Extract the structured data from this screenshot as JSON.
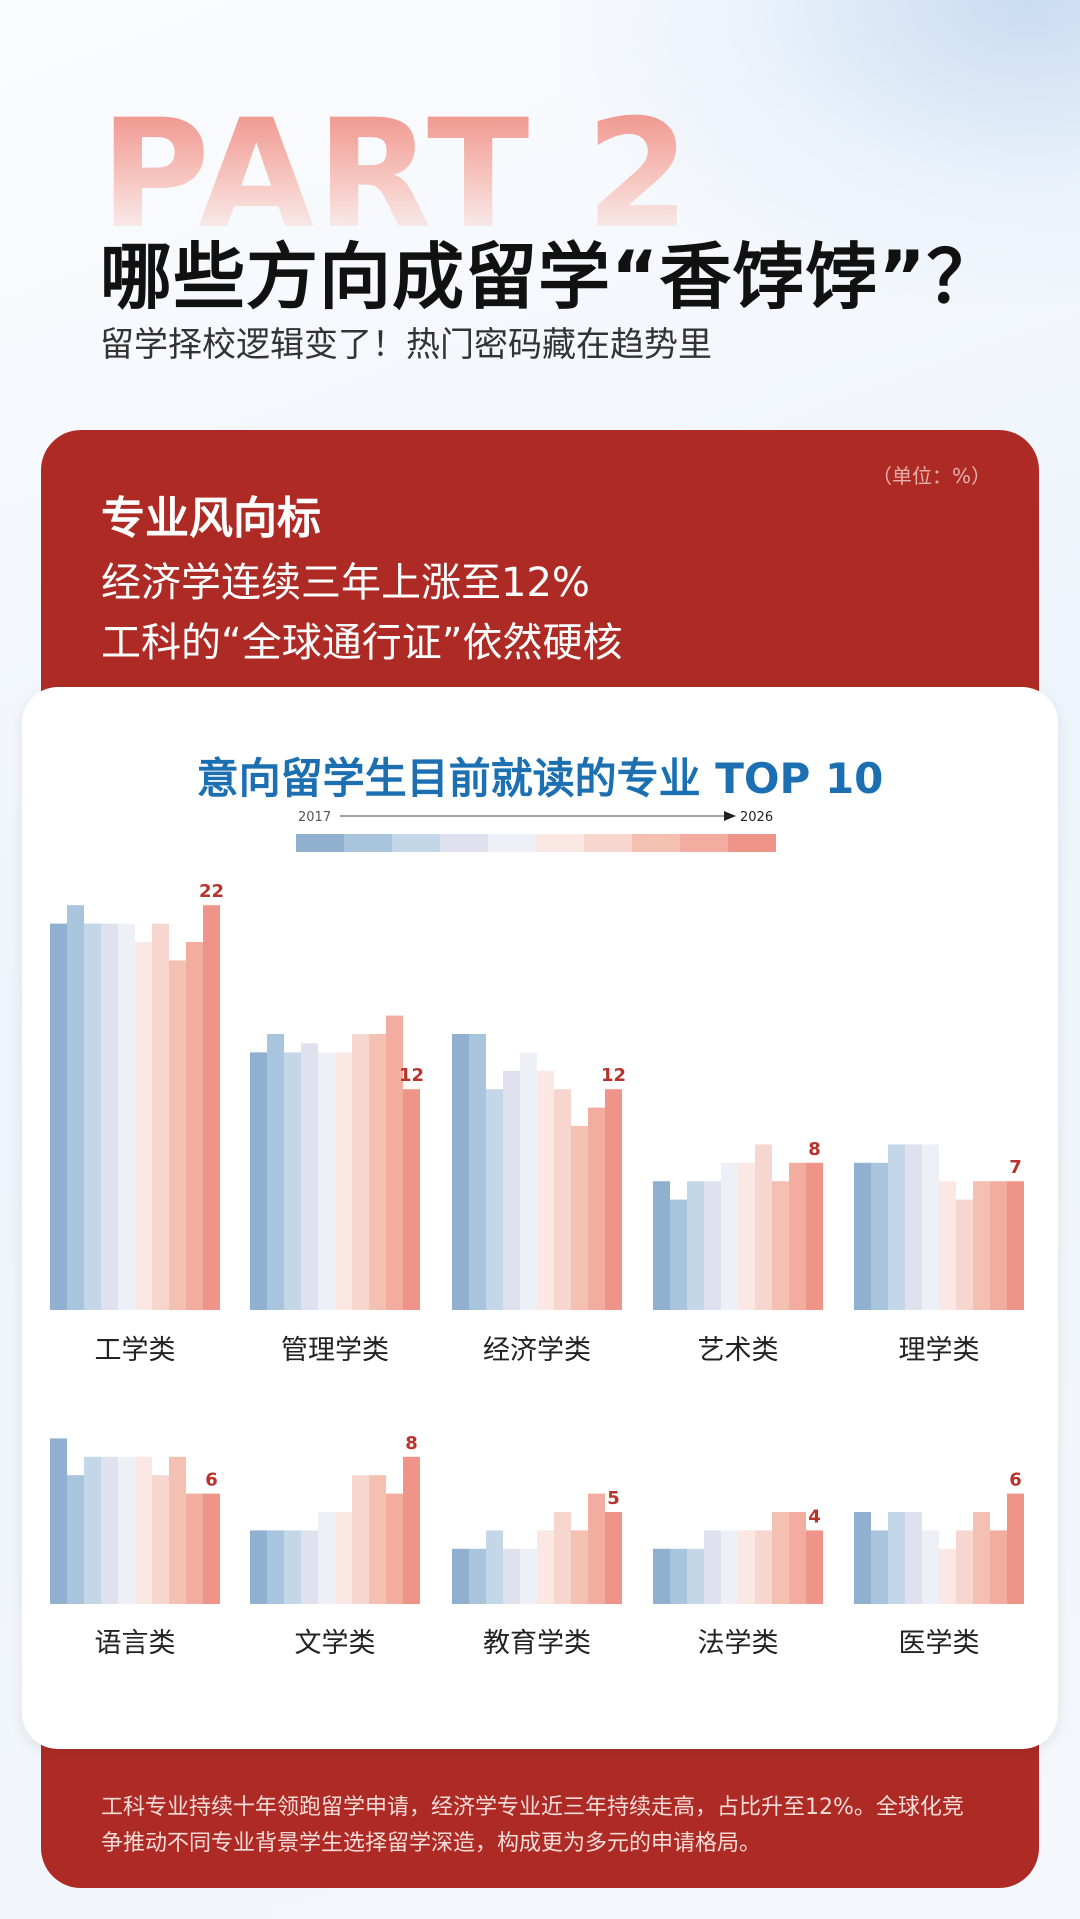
{
  "header": {
    "part_label": "PART 2",
    "title": "哪些方向成留学“香饽饽”？",
    "subtitle": "留学择校逻辑变了！热门密码藏在趋势里"
  },
  "card": {
    "unit": "（单位：%）",
    "heading": "专业风向标",
    "line1": "经济学连续三年上涨至12%",
    "line2": "工科的“全球通行证”依然硬核",
    "footnote": "工科专业持续十年领跑留学申请，经济学专业近三年持续走高，占比升至12%。全球化竞争推动不同专业背景学生选择留学深造，构成更为多元的申请格局。"
  },
  "chart_data": {
    "type": "bar",
    "title": "意向留学生目前就读的专业 TOP 10",
    "legend": {
      "start": "2017",
      "end": "2026"
    },
    "years": [
      "2017",
      "2018",
      "2019",
      "2020",
      "2021",
      "2022",
      "2023",
      "2024",
      "2025",
      "2026"
    ],
    "colors": [
      "#8fb0cf",
      "#a9c5de",
      "#c3d7e8",
      "#dfe2ee",
      "#eef0f8",
      "#fbe7e4",
      "#f8d6d0",
      "#f4c0b2",
      "#f3aca0",
      "#ee9488"
    ],
    "label_color": "#b8332c",
    "series": [
      {
        "category": "工学类",
        "values": [
          21,
          22,
          21,
          21,
          21,
          20,
          21,
          19,
          20,
          22
        ],
        "label": "22"
      },
      {
        "category": "管理学类",
        "values": [
          14,
          15,
          14,
          14.5,
          14,
          14,
          15,
          15,
          16,
          12
        ],
        "label": "12"
      },
      {
        "category": "经济学类",
        "values": [
          15,
          15,
          12,
          13,
          14,
          13,
          12,
          10,
          11,
          12
        ],
        "label": "12"
      },
      {
        "category": "艺术类",
        "values": [
          7,
          6,
          7,
          7,
          8,
          8,
          9,
          7,
          8,
          8
        ],
        "label": "8"
      },
      {
        "category": "理学类",
        "values": [
          8,
          8,
          9,
          9,
          9,
          7,
          6,
          7,
          7,
          7
        ],
        "label": "7"
      },
      {
        "category": "语言类",
        "values": [
          9,
          7,
          8,
          8,
          8,
          8,
          7,
          8,
          6,
          6
        ],
        "label": "6"
      },
      {
        "category": "文学类",
        "values": [
          4,
          4,
          4,
          4,
          5,
          5,
          7,
          7,
          6,
          8
        ],
        "label": "8"
      },
      {
        "category": "教育学类",
        "values": [
          3,
          3,
          4,
          3,
          3,
          4,
          5,
          4,
          6,
          5
        ],
        "label": "5"
      },
      {
        "category": "法学类",
        "values": [
          3,
          3,
          3,
          4,
          4,
          4,
          4,
          5,
          5,
          4
        ],
        "label": "4"
      },
      {
        "category": "医学类",
        "values": [
          5,
          4,
          5,
          5,
          4,
          3,
          4,
          5,
          4,
          6
        ],
        "label": "6"
      }
    ]
  }
}
